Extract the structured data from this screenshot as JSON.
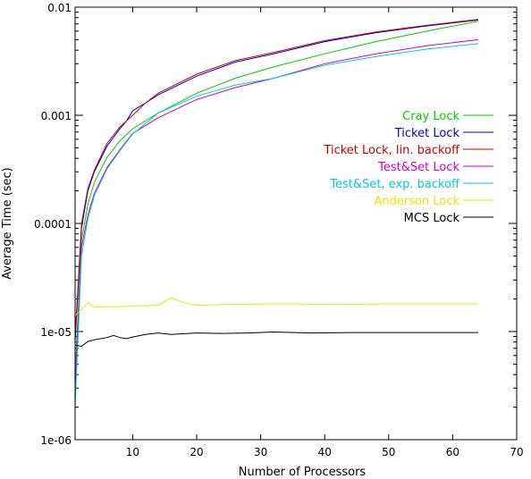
{
  "chart_data": {
    "type": "line",
    "xlabel": "Number of Processors",
    "ylabel": "Average Time (sec)",
    "xlim": [
      1,
      70
    ],
    "ylim": [
      1e-06,
      0.01
    ],
    "yscale": "log",
    "grid": false,
    "legend_position": "right",
    "xticks": [
      {
        "value": 10,
        "label": "10"
      },
      {
        "value": 20,
        "label": "20"
      },
      {
        "value": 30,
        "label": "30"
      },
      {
        "value": 40,
        "label": "40"
      },
      {
        "value": 50,
        "label": "50"
      },
      {
        "value": 60,
        "label": "60"
      },
      {
        "value": 70,
        "label": "70"
      }
    ],
    "yticks": [
      {
        "value": 1e-06,
        "label": "1e-06"
      },
      {
        "value": 1e-05,
        "label": "1e-05"
      },
      {
        "value": 0.0001,
        "label": "0.0001"
      },
      {
        "value": 0.001,
        "label": "0.001"
      },
      {
        "value": 0.01,
        "label": "0.01"
      }
    ],
    "series": [
      {
        "name": "Cray Lock",
        "color": "#00cc00",
        "points": [
          [
            1,
            4e-06
          ],
          [
            2,
            7e-05
          ],
          [
            3,
            0.00015
          ],
          [
            4,
            0.00024
          ],
          [
            6,
            0.00041
          ],
          [
            8,
            0.00058
          ],
          [
            10,
            0.00075
          ],
          [
            14,
            0.00105
          ],
          [
            20,
            0.0016
          ],
          [
            26,
            0.0022
          ],
          [
            32,
            0.0028
          ],
          [
            40,
            0.0037
          ],
          [
            48,
            0.0048
          ],
          [
            56,
            0.006
          ],
          [
            64,
            0.0074
          ]
        ]
      },
      {
        "name": "Ticket Lock",
        "color": "#0000cc",
        "points": [
          [
            1,
            8e-06
          ],
          [
            2,
            9e-05
          ],
          [
            3,
            0.0002
          ],
          [
            4,
            0.0003
          ],
          [
            6,
            0.00052
          ],
          [
            8,
            0.00075
          ],
          [
            9,
            0.00088
          ],
          [
            10,
            0.0011
          ],
          [
            12,
            0.0013
          ],
          [
            14,
            0.00155
          ],
          [
            20,
            0.0023
          ],
          [
            26,
            0.0031
          ],
          [
            32,
            0.0037
          ],
          [
            40,
            0.0048
          ],
          [
            48,
            0.0058
          ],
          [
            56,
            0.0067
          ],
          [
            64,
            0.0076
          ]
        ]
      },
      {
        "name": "Ticket Lock, lin. backoff",
        "color": "#cc0000",
        "points": [
          [
            1,
            9e-06
          ],
          [
            2,
            0.0001
          ],
          [
            3,
            0.00021
          ],
          [
            4,
            0.00031
          ],
          [
            6,
            0.00055
          ],
          [
            8,
            0.00078
          ],
          [
            10,
            0.001
          ],
          [
            12,
            0.0013
          ],
          [
            14,
            0.0016
          ],
          [
            20,
            0.0024
          ],
          [
            26,
            0.0032
          ],
          [
            32,
            0.0038
          ],
          [
            40,
            0.0049
          ],
          [
            48,
            0.0059
          ],
          [
            56,
            0.0068
          ],
          [
            64,
            0.0077
          ]
        ]
      },
      {
        "name": "Test&Set Lock",
        "color": "#cc00cc",
        "points": [
          [
            1,
            3e-06
          ],
          [
            2,
            6e-05
          ],
          [
            3,
            0.00012
          ],
          [
            4,
            0.00019
          ],
          [
            6,
            0.00033
          ],
          [
            8,
            0.00048
          ],
          [
            10,
            0.00068
          ],
          [
            14,
            0.00095
          ],
          [
            20,
            0.0014
          ],
          [
            26,
            0.0018
          ],
          [
            32,
            0.0022
          ],
          [
            40,
            0.003
          ],
          [
            48,
            0.0037
          ],
          [
            56,
            0.0044
          ],
          [
            64,
            0.005
          ]
        ]
      },
      {
        "name": "Test&Set, exp. backoff",
        "color": "#00cccc",
        "points": [
          [
            1,
            2e-06
          ],
          [
            2,
            5e-05
          ],
          [
            3,
            0.00011
          ],
          [
            4,
            0.00018
          ],
          [
            6,
            0.00032
          ],
          [
            8,
            0.00047
          ],
          [
            10,
            0.00067
          ],
          [
            14,
            0.00105
          ],
          [
            20,
            0.0015
          ],
          [
            26,
            0.0019
          ],
          [
            32,
            0.0022
          ],
          [
            40,
            0.0029
          ],
          [
            48,
            0.0035
          ],
          [
            56,
            0.0041
          ],
          [
            64,
            0.0046
          ]
        ]
      },
      {
        "name": "Anderson Lock",
        "color": "#e6e600",
        "points": [
          [
            1,
            1.4e-05
          ],
          [
            2,
            1.6e-05
          ],
          [
            3,
            1.85e-05
          ],
          [
            4,
            1.68e-05
          ],
          [
            6,
            1.7e-05
          ],
          [
            8,
            1.7e-05
          ],
          [
            10,
            1.72e-05
          ],
          [
            14,
            1.75e-05
          ],
          [
            16,
            2.05e-05
          ],
          [
            18,
            1.85e-05
          ],
          [
            20,
            1.75e-05
          ],
          [
            24,
            1.78e-05
          ],
          [
            30,
            1.8e-05
          ],
          [
            36,
            1.8e-05
          ],
          [
            42,
            1.78e-05
          ],
          [
            48,
            1.8e-05
          ],
          [
            56,
            1.8e-05
          ],
          [
            64,
            1.8e-05
          ]
        ]
      },
      {
        "name": "MCS Lock",
        "color": "#000000",
        "points": [
          [
            1,
            7.5e-06
          ],
          [
            2,
            7.3e-06
          ],
          [
            3,
            8.1e-06
          ],
          [
            4,
            8.4e-06
          ],
          [
            6,
            8.8e-06
          ],
          [
            7,
            9.2e-06
          ],
          [
            8,
            8.8e-06
          ],
          [
            9,
            8.6e-06
          ],
          [
            10,
            8.9e-06
          ],
          [
            12,
            9.4e-06
          ],
          [
            14,
            9.7e-06
          ],
          [
            16,
            9.4e-06
          ],
          [
            20,
            9.7e-06
          ],
          [
            24,
            9.6e-06
          ],
          [
            28,
            9.7e-06
          ],
          [
            32,
            9.9e-06
          ],
          [
            38,
            9.7e-06
          ],
          [
            44,
            9.8e-06
          ],
          [
            50,
            9.8e-06
          ],
          [
            56,
            9.8e-06
          ],
          [
            64,
            9.8e-06
          ]
        ]
      }
    ]
  }
}
